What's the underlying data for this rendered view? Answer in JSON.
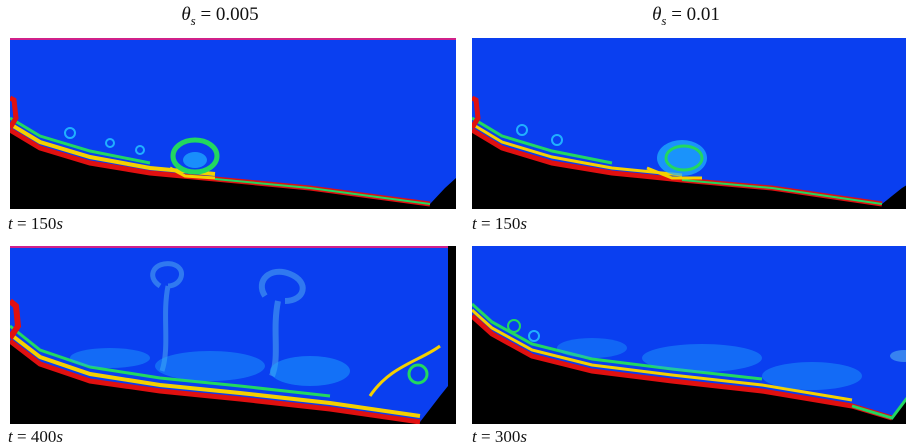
{
  "columns": [
    {
      "symbol": "θ",
      "subscript": "s",
      "value": "= 0.005"
    },
    {
      "symbol": "θ",
      "subscript": "s",
      "value": "= 0.01"
    }
  ],
  "panels": [
    {
      "t_prefix": "t",
      "t_value": "=  150",
      "t_unit": "s"
    },
    {
      "t_prefix": "t",
      "t_value": "=  150",
      "t_unit": "s"
    },
    {
      "t_prefix": "t",
      "t_value": "=  400",
      "t_unit": "s"
    },
    {
      "t_prefix": "t",
      "t_value": "=  300",
      "t_unit": "s"
    }
  ],
  "colors": {
    "background": "#0a3ff0",
    "bed": "#000000",
    "hot": "#e01010",
    "warm": "#f5d000",
    "mid": "#22d860",
    "cool": "#20b0ff"
  }
}
